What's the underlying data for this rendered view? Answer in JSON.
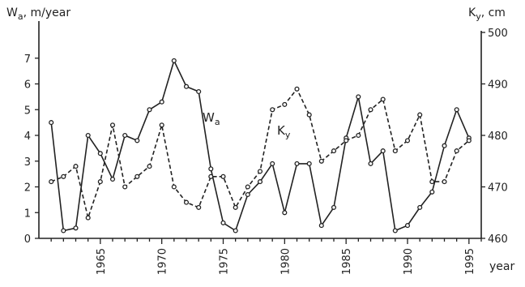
{
  "chart_data": {
    "type": "line",
    "y_left_label": "W",
    "y_left_label_sub": "a",
    "y_left_label_rest": ", m/year",
    "y_right_label": "K",
    "y_right_label_sub": "y",
    "y_right_label_rest": ", cm",
    "x_label": "year",
    "x_range": [
      1960,
      1996
    ],
    "y_left_range": [
      0,
      8
    ],
    "y_right_range": [
      460,
      500
    ],
    "x_ticks": [
      1965,
      1970,
      1975,
      1980,
      1985,
      1990,
      1995
    ],
    "y_left_ticks": [
      0,
      1,
      2,
      3,
      4,
      5,
      6,
      7
    ],
    "y_right_ticks": [
      460,
      470,
      480,
      490,
      500
    ],
    "series": [
      {
        "name": "Wa",
        "name_main": "W",
        "name_sub": "a",
        "axis": "left",
        "style": "solid",
        "x": [
          1961,
          1962,
          1963,
          1964,
          1965,
          1966,
          1967,
          1968,
          1969,
          1970,
          1971,
          1972,
          1973,
          1974,
          1975,
          1976,
          1977,
          1978,
          1979,
          1980,
          1981,
          1982,
          1983,
          1984,
          1985,
          1986,
          1987,
          1988,
          1989,
          1990,
          1991,
          1992,
          1993,
          1994,
          1995
        ],
        "y": [
          4.5,
          0.3,
          0.4,
          4.0,
          3.3,
          2.3,
          4.0,
          3.8,
          5.0,
          5.3,
          6.9,
          5.9,
          5.7,
          2.7,
          0.6,
          0.3,
          1.7,
          2.2,
          2.9,
          1.0,
          2.9,
          2.9,
          0.5,
          1.2,
          3.9,
          5.5,
          2.9,
          3.4,
          0.3,
          0.5,
          1.2,
          1.8,
          3.6,
          5.0,
          3.9
        ]
      },
      {
        "name": "Ky",
        "name_main": "K",
        "name_sub": "y",
        "axis": "right",
        "style": "dashed",
        "x": [
          1961,
          1962,
          1963,
          1964,
          1965,
          1966,
          1967,
          1968,
          1969,
          1970,
          1971,
          1972,
          1973,
          1974,
          1975,
          1976,
          1977,
          1978,
          1979,
          1980,
          1981,
          1982,
          1983,
          1984,
          1985,
          1986,
          1987,
          1988,
          1989,
          1990,
          1991,
          1992,
          1993,
          1994,
          1995
        ],
        "y": [
          471,
          472,
          474,
          464,
          471,
          482,
          470,
          472,
          474,
          482,
          470,
          467,
          466,
          472,
          472,
          466,
          470,
          473,
          485,
          486,
          489,
          484,
          475,
          477,
          479,
          480,
          485,
          487,
          477,
          479,
          484,
          471,
          471,
          477,
          479
        ]
      }
    ]
  }
}
